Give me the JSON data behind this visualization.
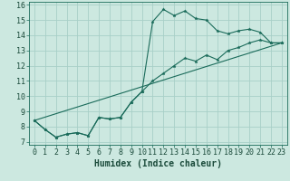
{
  "xlabel": "Humidex (Indice chaleur)",
  "bg_color": "#cce8e0",
  "grid_color": "#a8cfc7",
  "line_color": "#1a6b5a",
  "xlim": [
    -0.5,
    23.5
  ],
  "ylim": [
    6.8,
    16.2
  ],
  "yticks": [
    7,
    8,
    9,
    10,
    11,
    12,
    13,
    14,
    15,
    16
  ],
  "xticks": [
    0,
    1,
    2,
    3,
    4,
    5,
    6,
    7,
    8,
    9,
    10,
    11,
    12,
    13,
    14,
    15,
    16,
    17,
    18,
    19,
    20,
    21,
    22,
    23
  ],
  "series1_x": [
    0,
    1,
    2,
    3,
    4,
    5,
    6,
    7,
    8,
    9,
    10,
    11,
    12,
    13,
    14,
    15,
    16,
    17,
    18,
    19,
    20,
    21,
    22,
    23
  ],
  "series1_y": [
    8.4,
    7.8,
    7.3,
    7.5,
    7.6,
    7.4,
    8.6,
    8.5,
    8.6,
    9.6,
    10.3,
    14.9,
    15.7,
    15.3,
    15.6,
    15.1,
    15.0,
    14.3,
    14.1,
    14.3,
    14.4,
    14.2,
    13.5,
    13.5
  ],
  "series2_x": [
    0,
    1,
    2,
    3,
    4,
    5,
    6,
    7,
    8,
    9,
    10,
    11,
    12,
    13,
    14,
    15,
    16,
    17,
    18,
    19,
    20,
    21,
    22,
    23
  ],
  "series2_y": [
    8.4,
    7.8,
    7.3,
    7.5,
    7.6,
    7.4,
    8.6,
    8.5,
    8.6,
    9.6,
    10.3,
    11.0,
    11.5,
    12.0,
    12.5,
    12.3,
    12.7,
    12.4,
    13.0,
    13.2,
    13.5,
    13.7,
    13.5,
    13.5
  ],
  "series3_x": [
    0,
    23
  ],
  "series3_y": [
    8.4,
    13.5
  ],
  "xlabel_fontsize": 7,
  "tick_fontsize": 6
}
